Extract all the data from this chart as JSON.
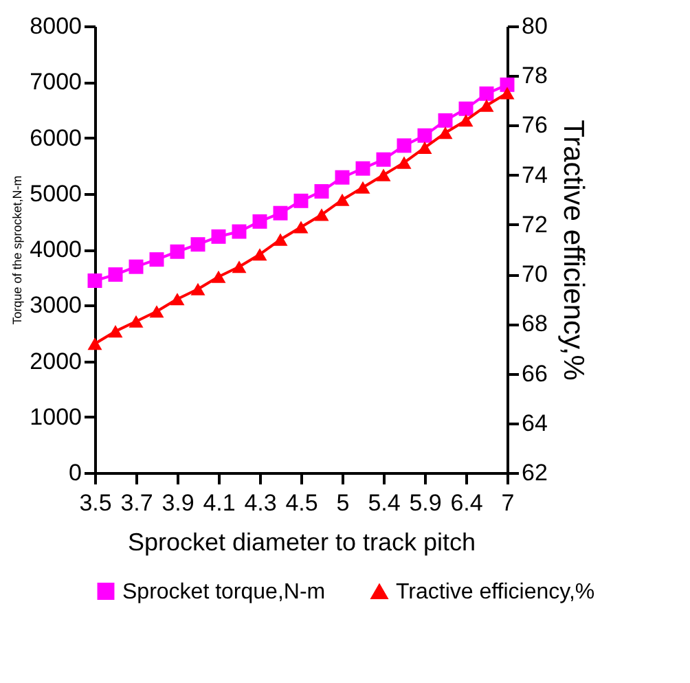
{
  "chart_data": {
    "type": "line",
    "xlabel": "Sprocket diameter to track pitch",
    "ylabel": "Torque of the sprocket,N-m",
    "y2label": "Tractive efficiency,%",
    "categories": [
      "3.5",
      null,
      "3.7",
      null,
      "3.9",
      null,
      "4.1",
      null,
      "4.3",
      null,
      "4.5",
      null,
      "5",
      null,
      "5.4",
      null,
      "5.9",
      null,
      "6.4",
      null,
      "7"
    ],
    "series": [
      {
        "name": "Sprocket torque,N-m",
        "color": "#ff00ff",
        "marker": "square",
        "values": [
          3440,
          3550,
          3690,
          3820,
          3960,
          4090,
          4230,
          4320,
          4500,
          4650,
          4870,
          5040,
          5290,
          5450,
          5610,
          5860,
          6040,
          6310,
          6520,
          6790,
          6950
        ]
      },
      {
        "name": "Tractive efficiency,%",
        "color": "#ff0000",
        "marker": "triangle",
        "axis": "y2",
        "values": [
          67.2,
          67.7,
          68.1,
          68.5,
          69.0,
          69.4,
          69.9,
          70.3,
          70.8,
          71.4,
          71.9,
          72.4,
          73.0,
          73.5,
          74.0,
          74.5,
          75.1,
          75.7,
          76.2,
          76.8,
          77.3
        ]
      }
    ],
    "ylim": [
      0,
      8000
    ],
    "yticks": [
      0,
      1000,
      2000,
      3000,
      4000,
      5000,
      6000,
      7000,
      8000
    ],
    "y2lim": [
      62,
      80
    ],
    "y2ticks": [
      62,
      64,
      66,
      68,
      70,
      72,
      74,
      76,
      78,
      80
    ],
    "legend": "bottom"
  }
}
